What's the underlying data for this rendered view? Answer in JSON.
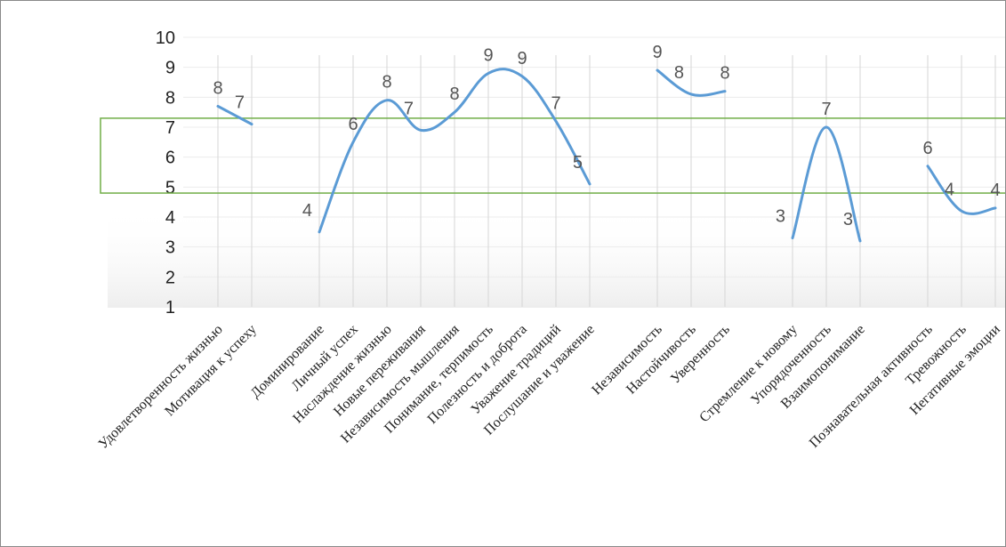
{
  "chart_data": {
    "type": "line",
    "title": "",
    "xlabel": "",
    "ylabel": "",
    "ylim": [
      1,
      10
    ],
    "yticks": [
      1,
      2,
      3,
      4,
      5,
      6,
      7,
      8,
      9,
      10
    ],
    "grid": {
      "horizontal": true,
      "vertical": true
    },
    "norm_band": {
      "from": 4.8,
      "to": 7.3,
      "color": "#70ad47"
    },
    "line_color": "#5b9bd5",
    "groups": [
      {
        "categories": [
          "Удовлетворенность жизнью",
          "Мотивация к успеху"
        ],
        "values": [
          7.7,
          7.1
        ],
        "labels": [
          "8",
          "7"
        ]
      },
      {
        "categories": [
          "Доминирование",
          "Личный успех",
          "Наслаждение жизнью",
          "Новые переживания",
          "Независимость мышления",
          "Понимание, терпимость",
          "Полезность и доброта",
          "Уважение традиций",
          "Послушание и уважение"
        ],
        "values": [
          3.5,
          6.5,
          7.9,
          6.9,
          7.5,
          8.8,
          8.7,
          7.2,
          5.1
        ],
        "labels": [
          "4",
          "6",
          "8",
          "7",
          "8",
          "9",
          "9",
          "7",
          "5"
        ]
      },
      {
        "categories": [
          "Независимость",
          "Настойчивость",
          "Уверенность"
        ],
        "values": [
          8.9,
          8.1,
          8.2
        ],
        "labels": [
          "9",
          "8",
          "8"
        ]
      },
      {
        "categories": [
          "Стремление к новому",
          "Упорядоченность",
          "Взаимопонимание"
        ],
        "values": [
          3.3,
          7.0,
          3.2
        ],
        "labels": [
          "3",
          "7",
          "3"
        ]
      },
      {
        "categories": [
          "Познавательная активность",
          "Тревожность",
          "Негативные эмоции"
        ],
        "values": [
          5.7,
          4.2,
          4.3
        ],
        "labels": [
          "6",
          "4",
          "4"
        ]
      }
    ]
  }
}
